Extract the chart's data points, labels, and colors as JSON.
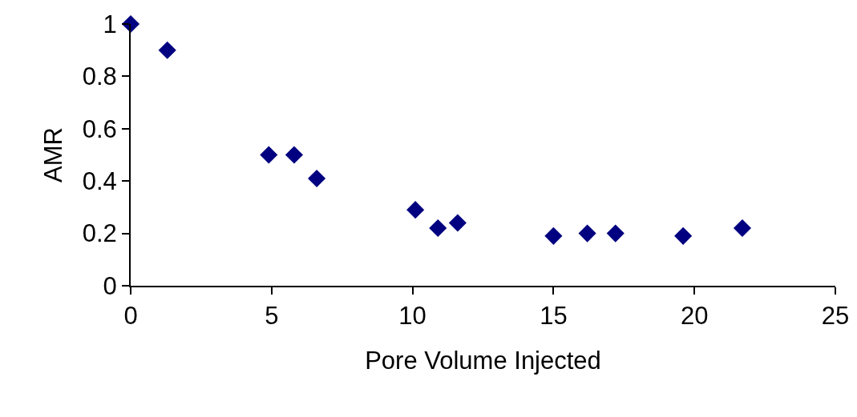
{
  "chart_data": {
    "type": "scatter",
    "xlabel": "Pore Volume Injected",
    "ylabel": "AMR",
    "x": [
      0,
      1.3,
      4.9,
      5.8,
      6.6,
      10.1,
      10.9,
      11.6,
      15.0,
      16.2,
      17.2,
      19.6,
      21.7
    ],
    "values": [
      1.0,
      0.9,
      0.5,
      0.5,
      0.41,
      0.29,
      0.22,
      0.24,
      0.19,
      0.2,
      0.2,
      0.19,
      0.22
    ],
    "color": "#000080",
    "marker": "diamond",
    "grid": false,
    "xlim": [
      0,
      25
    ],
    "xticks": [
      0,
      5,
      10,
      15,
      20,
      25
    ],
    "ylim": [
      0,
      1
    ],
    "yticks": [
      0,
      0.2,
      0.4,
      0.6,
      0.8,
      1
    ]
  }
}
